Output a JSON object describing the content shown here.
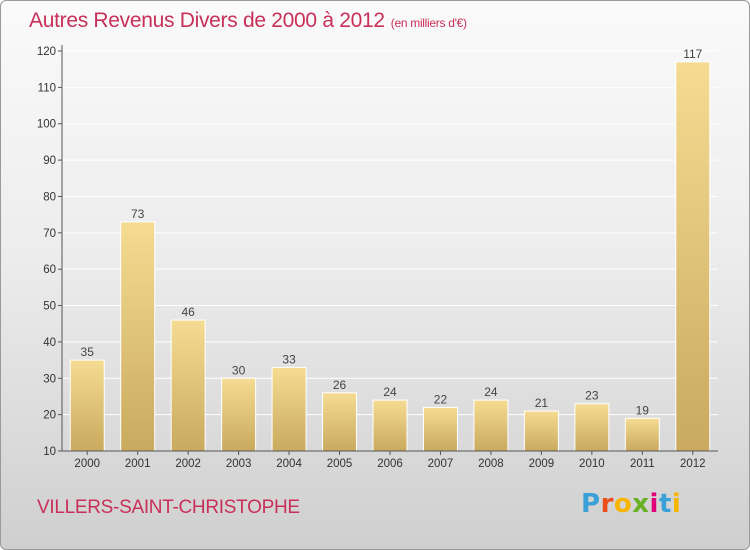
{
  "header": {
    "title": "Autres Revenus Divers de 2000 à 2012",
    "unit": "(en milliers d'€)"
  },
  "footer": {
    "commune": "VILLERS-SAINT-CHRISTOPHE",
    "logo_text": "Proxiti",
    "logo_colors": [
      "#3aa0d8",
      "#e94e1b",
      "#f7b500",
      "#6ab023",
      "#e2007a",
      "#3aa0d8",
      "#f7b500"
    ]
  },
  "colors": {
    "title": "#c8305a",
    "bar_light": "#f5dc92",
    "bar_dark": "#c9aa5e",
    "axis": "#555555",
    "grid": "#ffffff"
  },
  "chart_data": {
    "type": "bar",
    "title": "Autres Revenus Divers de 2000 à 2012",
    "subtitle": "(en milliers d'€)",
    "categories": [
      "2000",
      "2001",
      "2002",
      "2003",
      "2004",
      "2005",
      "2006",
      "2007",
      "2008",
      "2009",
      "2010",
      "2011",
      "2012"
    ],
    "values": [
      35,
      73,
      46,
      30,
      33,
      26,
      24,
      22,
      24,
      21,
      23,
      19,
      117
    ],
    "ylim": [
      10,
      120
    ],
    "yticks": [
      10,
      20,
      30,
      40,
      50,
      60,
      70,
      80,
      90,
      100,
      110,
      120
    ],
    "grid": true,
    "legend": "none",
    "xlabel": "",
    "ylabel": ""
  }
}
